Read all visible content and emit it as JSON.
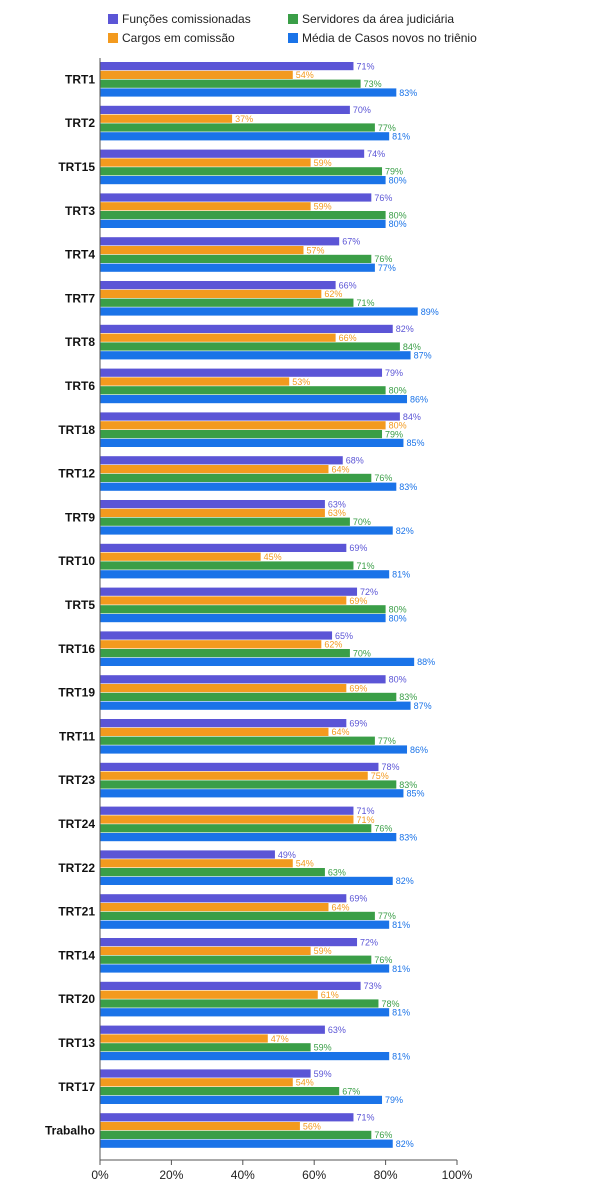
{
  "chart_data": {
    "type": "bar",
    "orientation": "horizontal",
    "xlim": [
      0,
      100
    ],
    "x_ticks": [
      "0%",
      "20%",
      "40%",
      "60%",
      "80%",
      "100%"
    ],
    "legend_position": "top",
    "grid": false,
    "categories": [
      "TRT1",
      "TRT2",
      "TRT15",
      "TRT3",
      "TRT4",
      "TRT7",
      "TRT8",
      "TRT6",
      "TRT18",
      "TRT12",
      "TRT9",
      "TRT10",
      "TRT5",
      "TRT16",
      "TRT19",
      "TRT11",
      "TRT23",
      "TRT24",
      "TRT22",
      "TRT21",
      "TRT14",
      "TRT20",
      "TRT13",
      "TRT17",
      "Trabalho"
    ],
    "series": [
      {
        "name": "Funções comissionadas",
        "color": "#5b55d6",
        "values": [
          71,
          70,
          74,
          76,
          67,
          66,
          82,
          79,
          84,
          68,
          63,
          69,
          72,
          65,
          80,
          69,
          78,
          71,
          49,
          69,
          72,
          73,
          63,
          59,
          71
        ]
      },
      {
        "name": "Cargos em comissão",
        "color": "#f39a1e",
        "values": [
          54,
          37,
          59,
          59,
          57,
          62,
          66,
          53,
          80,
          64,
          63,
          45,
          69,
          62,
          69,
          64,
          75,
          71,
          54,
          64,
          59,
          61,
          47,
          54,
          56
        ]
      },
      {
        "name": "Servidores da área judiciária",
        "color": "#3a9e47",
        "values": [
          73,
          77,
          79,
          80,
          76,
          71,
          84,
          80,
          79,
          76,
          70,
          71,
          80,
          70,
          83,
          77,
          83,
          76,
          63,
          77,
          76,
          78,
          59,
          67,
          76
        ]
      },
      {
        "name": "Média de Casos novos no triênio",
        "color": "#1a73e8",
        "values": [
          83,
          81,
          80,
          80,
          77,
          89,
          87,
          86,
          85,
          83,
          82,
          81,
          80,
          88,
          87,
          86,
          85,
          83,
          82,
          81,
          81,
          81,
          81,
          79,
          82
        ]
      }
    ],
    "value_suffix": "%"
  }
}
